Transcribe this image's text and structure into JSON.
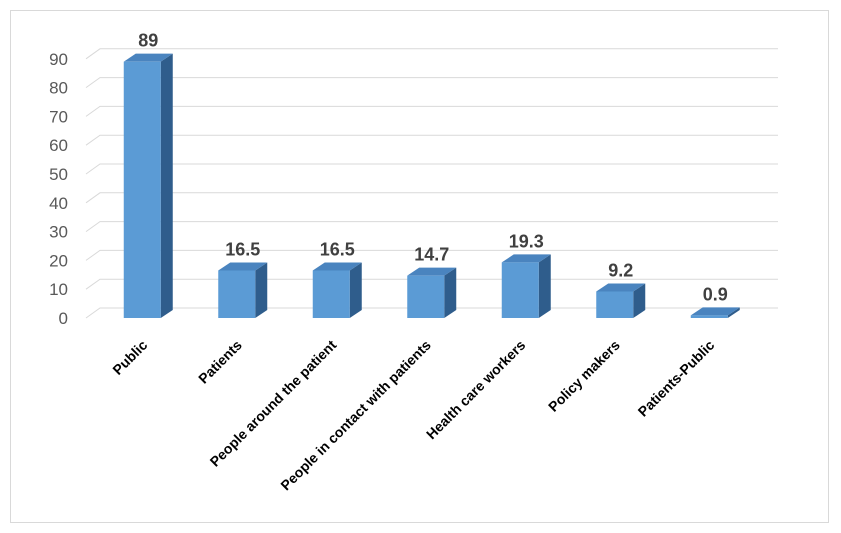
{
  "chart_data": {
    "type": "bar",
    "style": "3d-column",
    "categories": [
      "Public",
      "Patients",
      "People around the patient",
      "People in contact with patients",
      "Health care workers",
      "Policy makers",
      "Patients-Public"
    ],
    "values": [
      89,
      16.5,
      16.5,
      14.7,
      19.3,
      9.2,
      0.9
    ],
    "data_labels": [
      "89",
      "16.5",
      "16.5",
      "14.7",
      "19.3",
      "9.2",
      "0.9"
    ],
    "y_ticks": [
      "0",
      "10",
      "20",
      "30",
      "40",
      "50",
      "60",
      "70",
      "80",
      "90"
    ],
    "ylim": [
      0,
      90
    ],
    "grid": true,
    "legend": "none",
    "title": "",
    "xlabel": "",
    "ylabel": "",
    "colors": {
      "bar_front": "#5b9bd5",
      "bar_top": "#4a84bf",
      "bar_side": "#2f5d8c",
      "grid": "#d9d9d9"
    }
  }
}
